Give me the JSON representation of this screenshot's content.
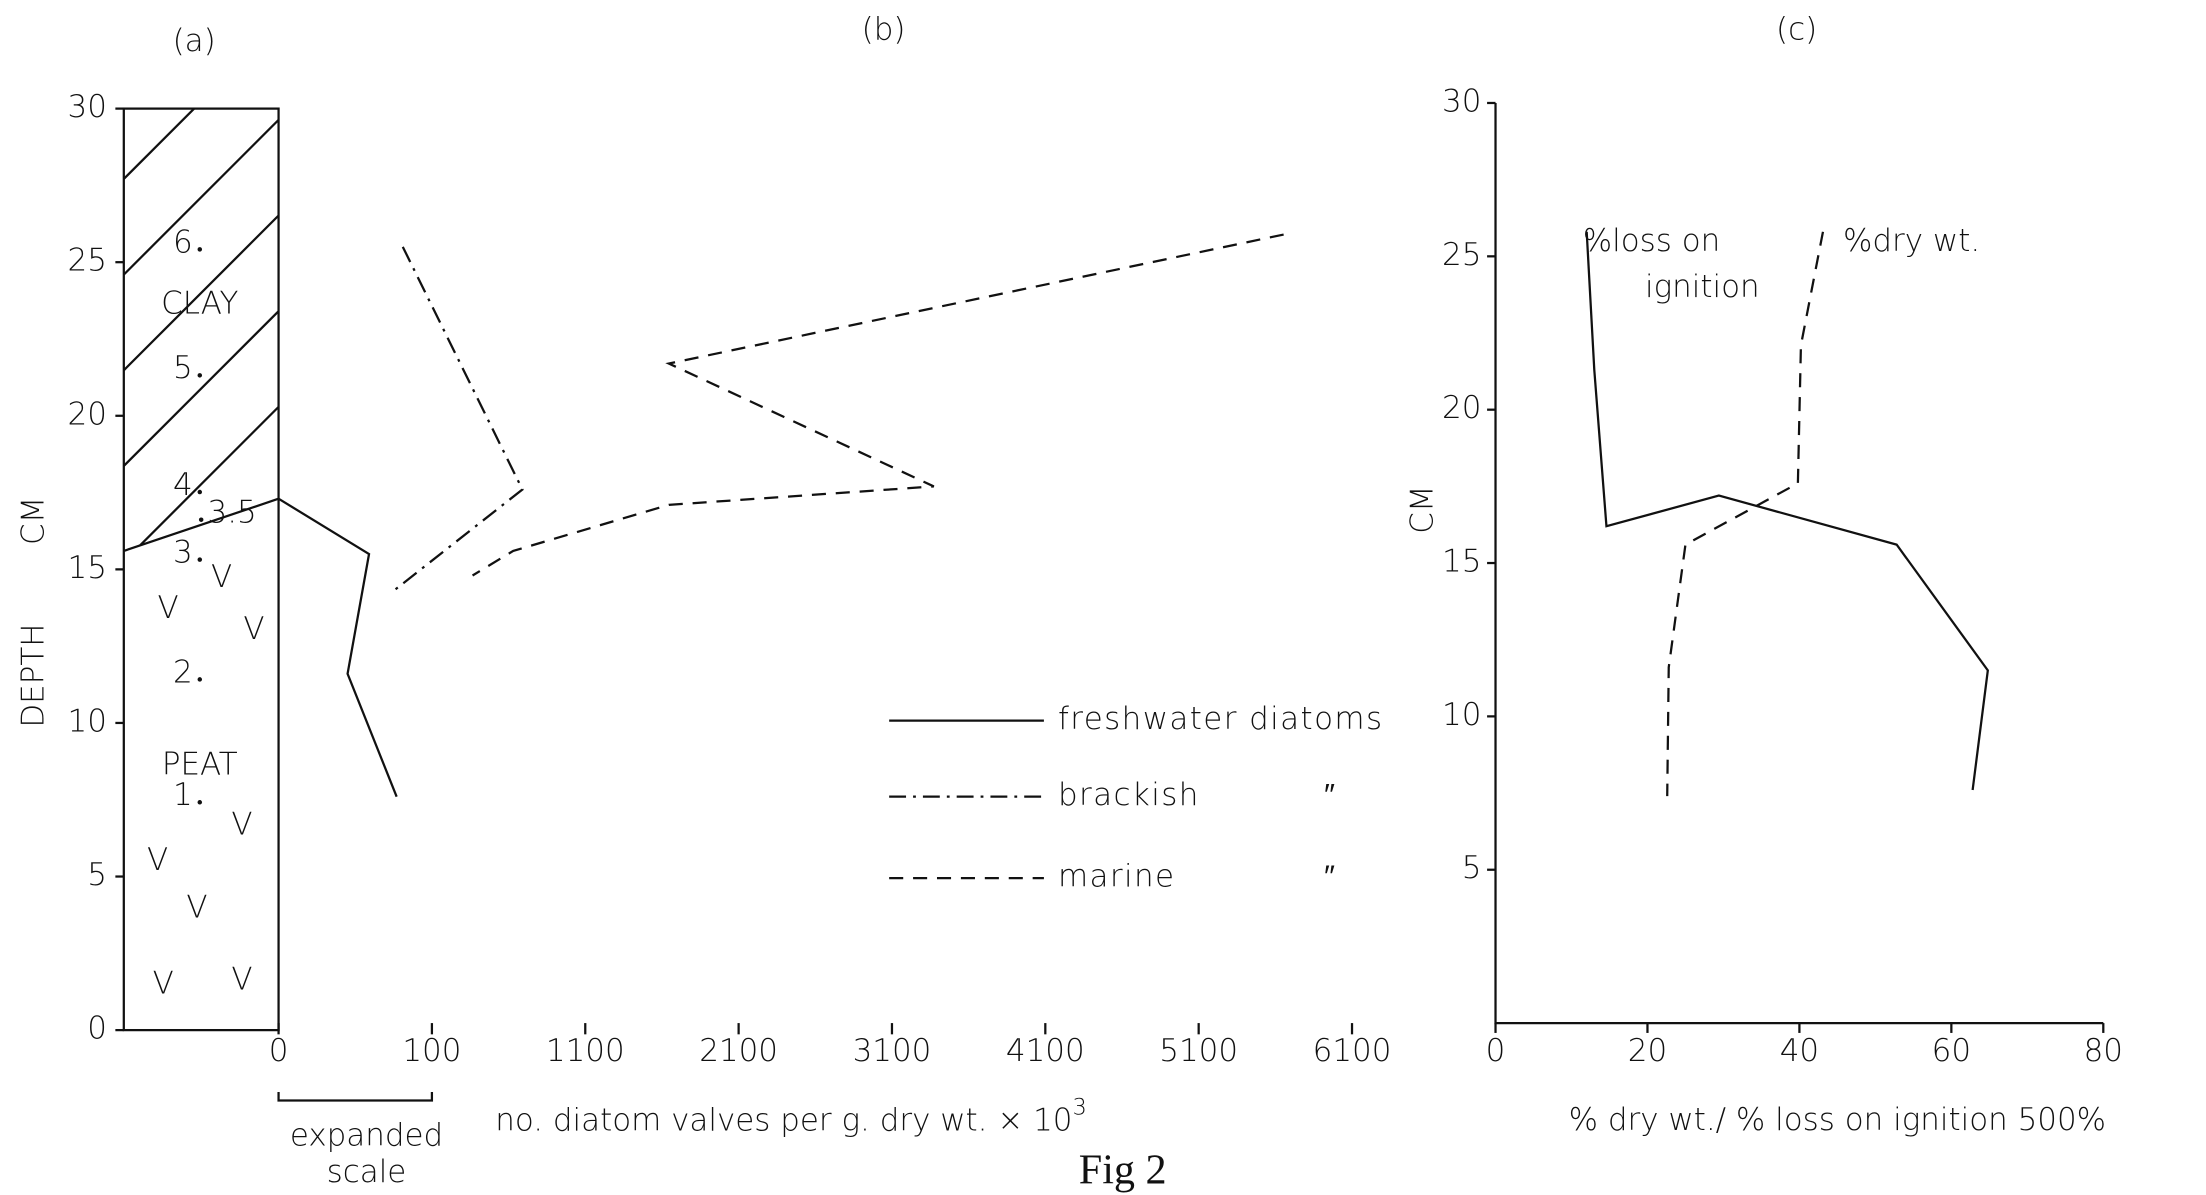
{
  "figure_caption": "Fig 2",
  "chart_data": [
    {
      "type": "column",
      "panel_label": "(a)",
      "y_label": "DEPTH",
      "y_unit": "CM",
      "ylim": [
        0,
        30
      ],
      "yticks": [
        0,
        5,
        10,
        15,
        20,
        25,
        30
      ],
      "units": [
        {
          "name": "CLAY",
          "depth": 23.6
        },
        {
          "name": "PEAT",
          "depth": 8.6
        }
      ],
      "boundary_depths": [
        15.6,
        17.3
      ],
      "peat_symbol": "V",
      "samples": {
        "labels": [
          "1",
          "2",
          "3",
          "3.5",
          "4",
          "5",
          "6"
        ],
        "depths": [
          7.6,
          11.6,
          15.5,
          16.8,
          17.7,
          21.5,
          25.6
        ]
      }
    },
    {
      "type": "line",
      "panel_label": "(b)",
      "x_label": "no. diatom valves per  g. dry wt.  × 10",
      "x_label_superscript": "3",
      "x_note": [
        "expanded",
        "scale"
      ],
      "ylim": [
        0,
        30
      ],
      "xticks": [
        0,
        100,
        1100,
        2100,
        3100,
        4100,
        5100,
        6100
      ],
      "ditto_mark": "″",
      "series": [
        {
          "name": "freshwater diatoms",
          "dash": "solid",
          "color": "#111",
          "x": [
            0,
            59,
            45,
            77
          ],
          "depths": [
            17.3,
            15.5,
            11.6,
            7.6
          ]
        },
        {
          "name": "brackish",
          "dash": "dashdot",
          "color": "#111",
          "x": [
            81,
            690,
            75
          ],
          "depths": [
            25.5,
            17.6,
            14.3
          ]
        },
        {
          "name": "marine",
          "dash": "dashed",
          "color": "#111",
          "x": [
            5654,
            1645,
            3373,
            1645,
            630,
            365
          ],
          "depths": [
            25.9,
            21.7,
            17.7,
            17.1,
            15.6,
            14.8
          ]
        }
      ]
    },
    {
      "type": "line",
      "panel_label": "(c)",
      "y_unit": "CM",
      "x_label": "% dry wt./ % loss on ignition 500%",
      "xlim": [
        0,
        80
      ],
      "xticks": [
        0,
        20,
        40,
        60,
        80
      ],
      "ylim": [
        0,
        30
      ],
      "yticks": [
        5,
        10,
        15,
        20,
        25,
        30
      ],
      "series": [
        {
          "name": [
            "%loss on",
            "ignition"
          ],
          "dash": "solid",
          "color": "#111",
          "x": [
            12,
            13,
            14.6,
            29.4,
            52.8,
            64.8,
            62.8
          ],
          "depths": [
            25.8,
            21.3,
            16.2,
            17.2,
            15.6,
            11.5,
            7.6
          ]
        },
        {
          "name": [
            "%dry wt."
          ],
          "dash": "dashed",
          "color": "#111",
          "x": [
            43.1,
            40.2,
            39.8,
            25,
            22.8,
            22.6
          ],
          "depths": [
            25.8,
            22.1,
            17.6,
            15.6,
            11.6,
            7.4
          ]
        }
      ]
    }
  ]
}
